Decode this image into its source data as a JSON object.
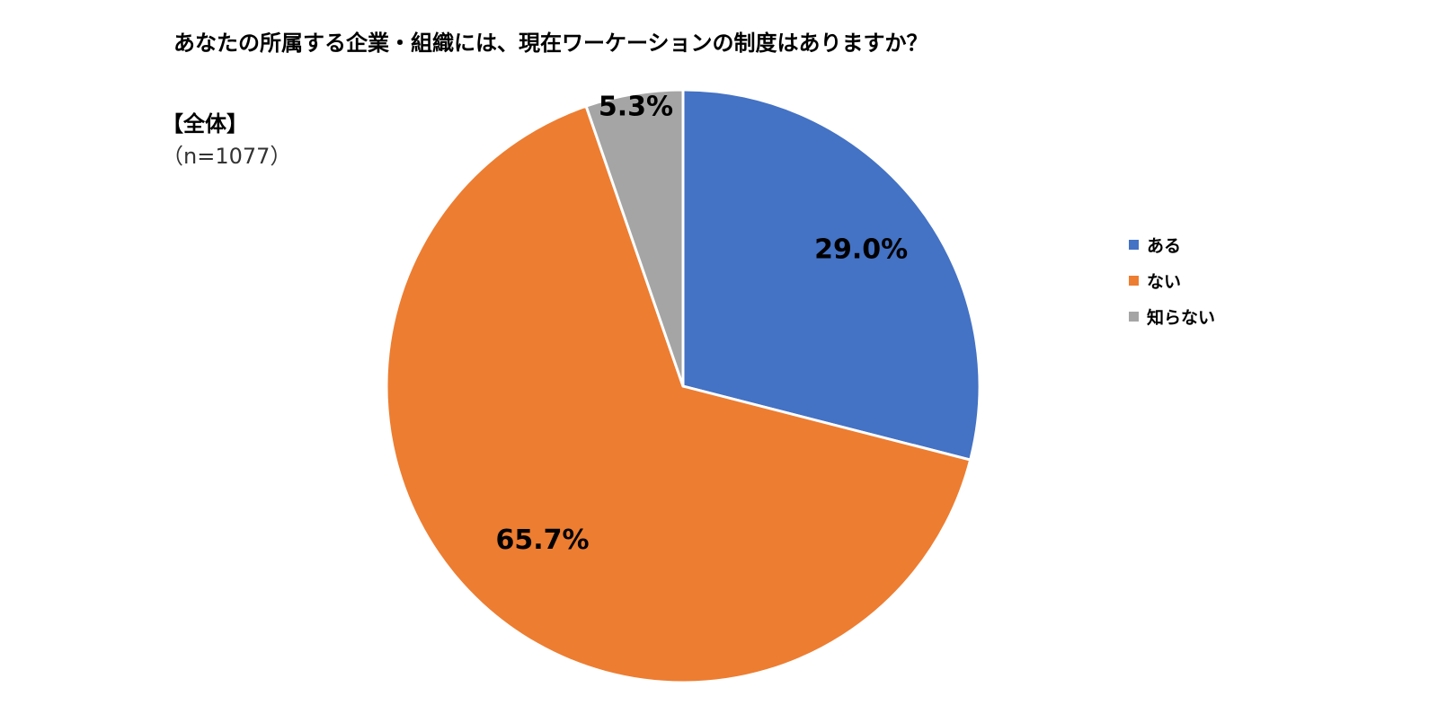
{
  "chart_data": {
    "type": "pie",
    "title": "あなたの所属する企業・組織には、現在ワーケーションの制度はありますか？",
    "group_label": "【全体】",
    "sample_size": "（n=1077）",
    "categories": [
      "ある",
      "ない",
      "知らない"
    ],
    "values": [
      29.0,
      65.7,
      5.3
    ],
    "data_labels": [
      "29.0%",
      "65.7%",
      "5.3%"
    ],
    "colors": [
      "#4472C4",
      "#ED7D31",
      "#A5A5A5"
    ],
    "start_angle": "12 o'clock",
    "direction": "clockwise",
    "legend_position": "right"
  }
}
